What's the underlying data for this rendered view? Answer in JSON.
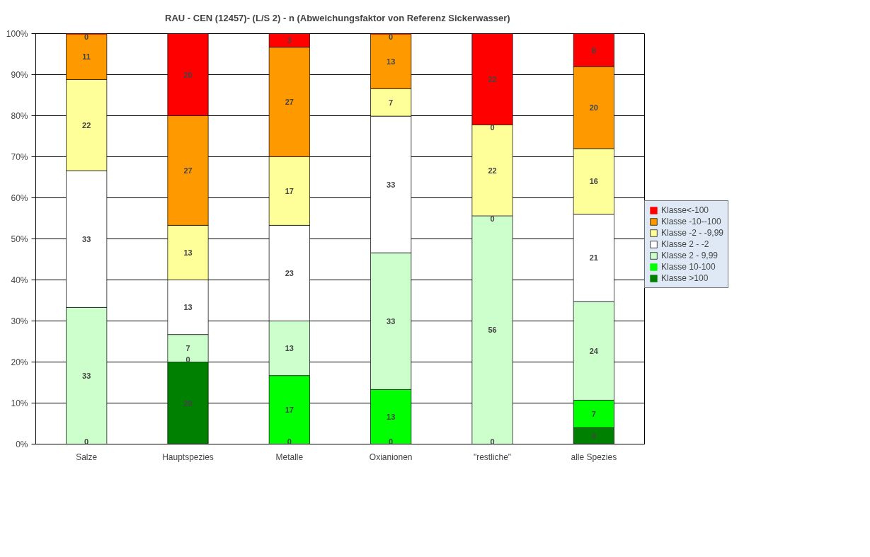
{
  "chart_data": {
    "type": "bar",
    "stacked": true,
    "title": "RAU -  CEN (12457)- (L/S 2) - n  (Abweichungsfaktor von Referenz Sickerwasser)",
    "categories": [
      "Salze",
      "Hauptspezies",
      "Metalle",
      "Oxianionen",
      "\"restliche\"",
      "alle Spezies"
    ],
    "series": [
      {
        "name": "Klasse >100",
        "color": "#008000",
        "values": [
          0,
          20,
          0,
          0,
          0,
          4
        ],
        "value_labels": [
          "0",
          "20",
          "0",
          "0",
          "0",
          "4"
        ]
      },
      {
        "name": "Klasse 10-100",
        "color": "#00ff00",
        "values": [
          0,
          0,
          16.7,
          13.3,
          0,
          6.7
        ],
        "value_labels": [
          null,
          "0",
          "17",
          "13",
          null,
          "7"
        ]
      },
      {
        "name": "Klasse 2 - 9,99",
        "color": "#ccffcc",
        "values": [
          33.3,
          6.7,
          13.3,
          33.3,
          55.6,
          24
        ],
        "value_labels": [
          "33",
          "7",
          "13",
          "33",
          "56",
          "24"
        ]
      },
      {
        "name": "Klasse 2 - -2",
        "color": "#ffffff",
        "values": [
          33.3,
          13.3,
          23.3,
          33.3,
          0,
          21.3
        ],
        "value_labels": [
          "33",
          "13",
          "23",
          "33",
          "0",
          "21"
        ]
      },
      {
        "name": "Klasse -2 - -9,99",
        "color": "#ffff99",
        "values": [
          22.2,
          13.3,
          16.7,
          6.7,
          22.2,
          16
        ],
        "value_labels": [
          "22",
          "13",
          "17",
          "7",
          "22",
          "16"
        ]
      },
      {
        "name": "Klasse -10--100",
        "color": "#ff9900",
        "values": [
          11.1,
          26.7,
          26.7,
          13.3,
          0,
          20
        ],
        "value_labels": [
          "11",
          "27",
          "27",
          "13",
          "0",
          "20"
        ]
      },
      {
        "name": "Klasse<-100",
        "color": "#ff0000",
        "values": [
          0,
          20,
          3.3,
          0,
          22.2,
          8
        ],
        "value_labels": [
          "0",
          "20",
          "3",
          "0",
          "22",
          "8"
        ]
      }
    ],
    "ylim": [
      0,
      100
    ],
    "yticks": [
      {
        "value": 0,
        "label": "0%"
      },
      {
        "value": 10,
        "label": "10%"
      },
      {
        "value": 20,
        "label": "20%"
      },
      {
        "value": 30,
        "label": "30%"
      },
      {
        "value": 40,
        "label": "40%"
      },
      {
        "value": 50,
        "label": "50%"
      },
      {
        "value": 60,
        "label": "60%"
      },
      {
        "value": 70,
        "label": "70%"
      },
      {
        "value": 80,
        "label": "80%"
      },
      {
        "value": 90,
        "label": "90%"
      },
      {
        "value": 100,
        "label": "100%"
      }
    ],
    "grid": "y",
    "legend": "right"
  }
}
